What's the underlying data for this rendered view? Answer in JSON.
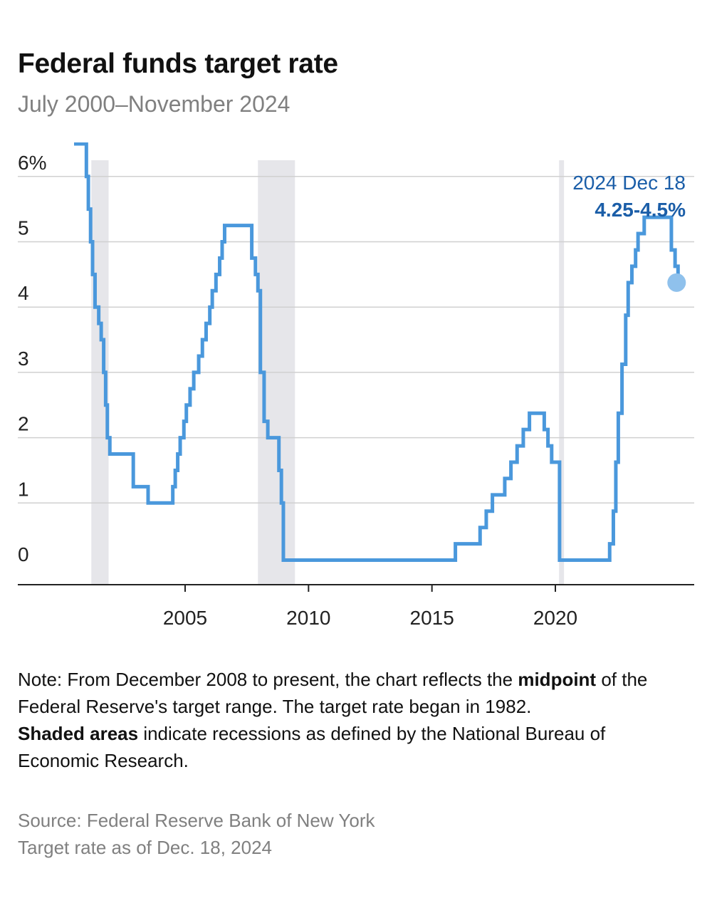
{
  "title": "Federal funds target rate",
  "subtitle": "July 2000–November 2024",
  "annotation": {
    "date": "2024 Dec 18",
    "value": "4.25-4.5%"
  },
  "notes": {
    "line1_pre": "Note: From December 2008 to present, the chart reflects the ",
    "line1_bold": "midpoint",
    "line1_post": " of the Federal Reserve's target range. The target rate began in 1982.",
    "line2_bold": "Shaded areas",
    "line2_post": " indicate recessions as defined by the National Bureau of Economic Research."
  },
  "source": "Source: Federal Reserve Bank of New York",
  "asof": "Target rate as of Dec. 18, 2024",
  "colors": {
    "line": "#4a98dc",
    "recession": "#e6e6ea",
    "grid": "#d0d0d0",
    "annotation": "#1b5ea8"
  },
  "chart_data": {
    "type": "line",
    "title": "Federal funds target rate",
    "ylim": [
      0,
      6.5
    ],
    "xlim": [
      2000.5,
      2025.0
    ],
    "y_ticks": [
      {
        "value": 0,
        "label": "0"
      },
      {
        "value": 1,
        "label": "1"
      },
      {
        "value": 2,
        "label": "2"
      },
      {
        "value": 3,
        "label": "3"
      },
      {
        "value": 4,
        "label": "4"
      },
      {
        "value": 5,
        "label": "5"
      },
      {
        "value": 6,
        "label": "6%"
      }
    ],
    "x_ticks": [
      {
        "value": 2005,
        "label": "2005"
      },
      {
        "value": 2010,
        "label": "2010"
      },
      {
        "value": 2015,
        "label": "2015"
      },
      {
        "value": 2020,
        "label": "2020"
      }
    ],
    "grid": true,
    "recessions": [
      [
        2001.2,
        2001.9
      ],
      [
        2007.95,
        2009.45
      ],
      [
        2020.15,
        2020.35
      ]
    ],
    "series": [
      {
        "values": [
          [
            2000.5,
            6.5
          ],
          [
            2001.0,
            6.0
          ],
          [
            2001.08,
            5.5
          ],
          [
            2001.17,
            5.0
          ],
          [
            2001.25,
            4.5
          ],
          [
            2001.35,
            4.0
          ],
          [
            2001.5,
            3.75
          ],
          [
            2001.6,
            3.5
          ],
          [
            2001.7,
            3.0
          ],
          [
            2001.78,
            2.5
          ],
          [
            2001.85,
            2.0
          ],
          [
            2001.95,
            1.75
          ],
          [
            2002.9,
            1.25
          ],
          [
            2003.5,
            1.0
          ],
          [
            2004.5,
            1.25
          ],
          [
            2004.6,
            1.5
          ],
          [
            2004.7,
            1.75
          ],
          [
            2004.8,
            2.0
          ],
          [
            2004.95,
            2.25
          ],
          [
            2005.05,
            2.5
          ],
          [
            2005.2,
            2.75
          ],
          [
            2005.35,
            3.0
          ],
          [
            2005.55,
            3.25
          ],
          [
            2005.7,
            3.5
          ],
          [
            2005.85,
            3.75
          ],
          [
            2006.0,
            4.0
          ],
          [
            2006.1,
            4.25
          ],
          [
            2006.25,
            4.5
          ],
          [
            2006.4,
            4.75
          ],
          [
            2006.5,
            5.0
          ],
          [
            2006.6,
            5.25
          ],
          [
            2007.7,
            4.75
          ],
          [
            2007.85,
            4.5
          ],
          [
            2007.95,
            4.25
          ],
          [
            2008.05,
            3.0
          ],
          [
            2008.2,
            2.25
          ],
          [
            2008.35,
            2.0
          ],
          [
            2008.8,
            1.5
          ],
          [
            2008.9,
            1.0
          ],
          [
            2008.98,
            0.125
          ],
          [
            2015.95,
            0.375
          ],
          [
            2016.95,
            0.625
          ],
          [
            2017.2,
            0.875
          ],
          [
            2017.45,
            1.125
          ],
          [
            2017.95,
            1.375
          ],
          [
            2018.2,
            1.625
          ],
          [
            2018.45,
            1.875
          ],
          [
            2018.7,
            2.125
          ],
          [
            2018.95,
            2.375
          ],
          [
            2019.55,
            2.125
          ],
          [
            2019.7,
            1.875
          ],
          [
            2019.85,
            1.625
          ],
          [
            2020.17,
            0.125
          ],
          [
            2022.2,
            0.375
          ],
          [
            2022.35,
            0.875
          ],
          [
            2022.45,
            1.625
          ],
          [
            2022.55,
            2.375
          ],
          [
            2022.7,
            3.125
          ],
          [
            2022.85,
            3.875
          ],
          [
            2022.95,
            4.375
          ],
          [
            2023.1,
            4.625
          ],
          [
            2023.25,
            4.875
          ],
          [
            2023.35,
            5.125
          ],
          [
            2023.6,
            5.375
          ],
          [
            2024.7,
            4.875
          ],
          [
            2024.85,
            4.625
          ],
          [
            2024.97,
            4.375
          ]
        ]
      }
    ],
    "end_point": [
      2024.97,
      4.375
    ]
  }
}
